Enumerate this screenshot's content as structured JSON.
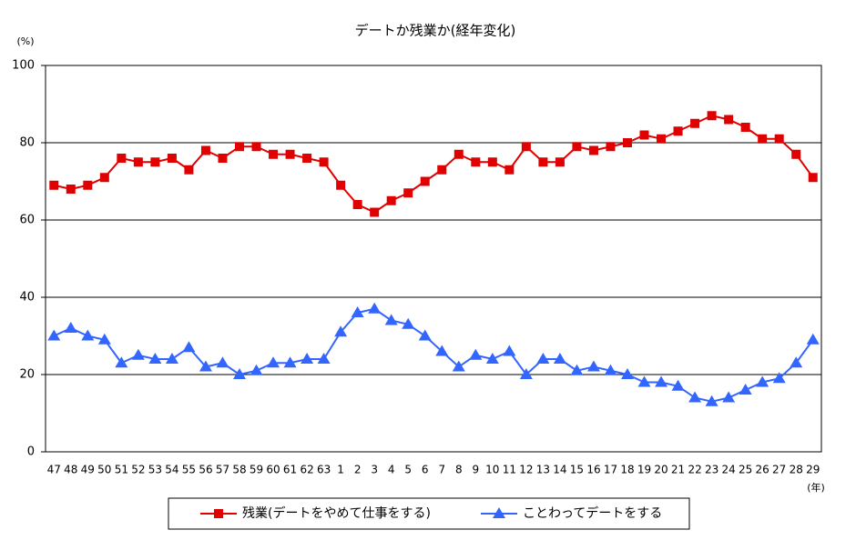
{
  "chart_data": {
    "type": "line",
    "title": "デートか残業か(経年変化)",
    "y_unit": "(%)",
    "x_unit": "(年)",
    "categories": [
      "47",
      "48",
      "49",
      "50",
      "51",
      "52",
      "53",
      "54",
      "55",
      "56",
      "57",
      "58",
      "59",
      "60",
      "61",
      "62",
      "63",
      "1",
      "2",
      "3",
      "4",
      "5",
      "6",
      "7",
      "8",
      "9",
      "10",
      "11",
      "12",
      "13",
      "14",
      "15",
      "16",
      "17",
      "18",
      "19",
      "20",
      "21",
      "22",
      "23",
      "24",
      "25",
      "26",
      "27",
      "28",
      "29"
    ],
    "series": [
      {
        "name": "残業(デートをやめて仕事をする)",
        "color": "#e00000",
        "marker": "square",
        "values": [
          69,
          68,
          69,
          71,
          76,
          75,
          75,
          76,
          73,
          78,
          76,
          79,
          79,
          77,
          77,
          76,
          75,
          69,
          64,
          62,
          65,
          67,
          70,
          73,
          77,
          75,
          75,
          73,
          79,
          75,
          75,
          79,
          78,
          79,
          80,
          82,
          81,
          83,
          85,
          87,
          86,
          84,
          81,
          81,
          77,
          71
        ]
      },
      {
        "name": "ことわってデートをする",
        "color": "#3366ff",
        "marker": "triangle",
        "values": [
          30,
          32,
          30,
          29,
          23,
          25,
          24,
          24,
          27,
          22,
          23,
          20,
          21,
          23,
          23,
          24,
          24,
          31,
          36,
          37,
          34,
          33,
          30,
          26,
          22,
          25,
          24,
          26,
          20,
          24,
          24,
          21,
          22,
          21,
          20,
          18,
          18,
          17,
          14,
          13,
          14,
          16,
          18,
          19,
          23,
          29
        ]
      }
    ],
    "ylim": [
      0,
      100
    ],
    "yticks": [
      0,
      20,
      40,
      60,
      80,
      100
    ],
    "grid": true
  }
}
